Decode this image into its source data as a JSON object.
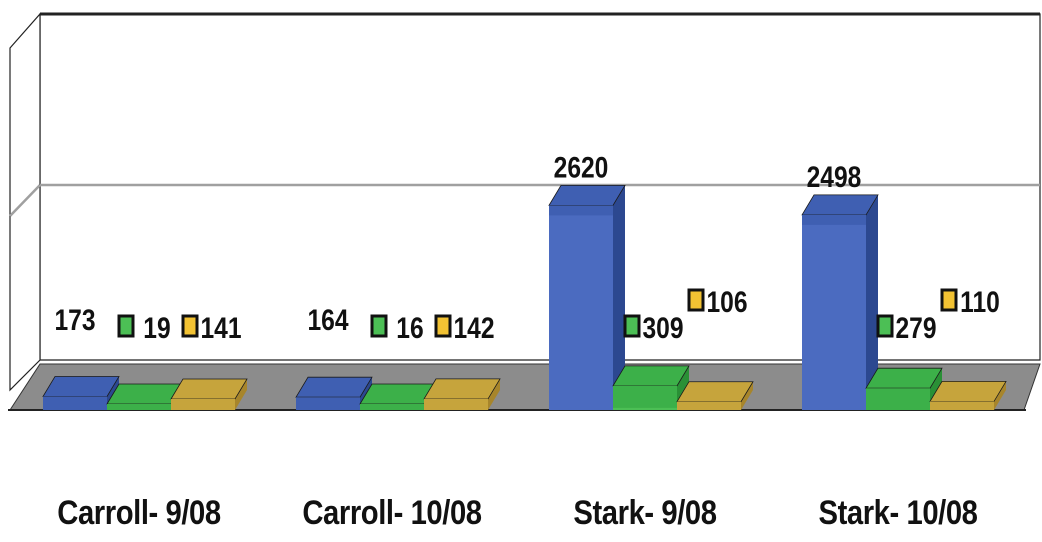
{
  "chart_data": {
    "type": "bar",
    "style": "3d-clustered",
    "categories": [
      "Carroll- 9/08",
      "Carroll- 10/08",
      "Stark- 9/08",
      "Stark- 10/08"
    ],
    "series": [
      {
        "values": [
          173,
          164,
          2620,
          2498
        ]
      },
      {
        "values": [
          19,
          16,
          309,
          279
        ]
      },
      {
        "values": [
          141,
          142,
          106,
          110
        ]
      }
    ],
    "data_labels": [
      [
        "173",
        "164",
        "2620",
        "2498"
      ],
      [
        "19",
        "16",
        "309",
        "279"
      ],
      [
        "141",
        "142",
        "106",
        "110"
      ]
    ],
    "title": "",
    "xlabel": "",
    "ylabel": "",
    "ylim": [
      0,
      3000
    ],
    "gridlines": true,
    "colors": {
      "series": [
        "#3f5fb2",
        "#3cb049",
        "#c6a43c"
      ],
      "series_front": [
        "#4b6bc0",
        "#4cbf55",
        "#f2c233"
      ],
      "series_side": [
        "#2c4890",
        "#2a9036",
        "#a7852b"
      ],
      "floor": "#8c8c8c",
      "wall": "#ffffff",
      "grid": "#a0a0a0",
      "legend_key_border": "#111111"
    }
  }
}
